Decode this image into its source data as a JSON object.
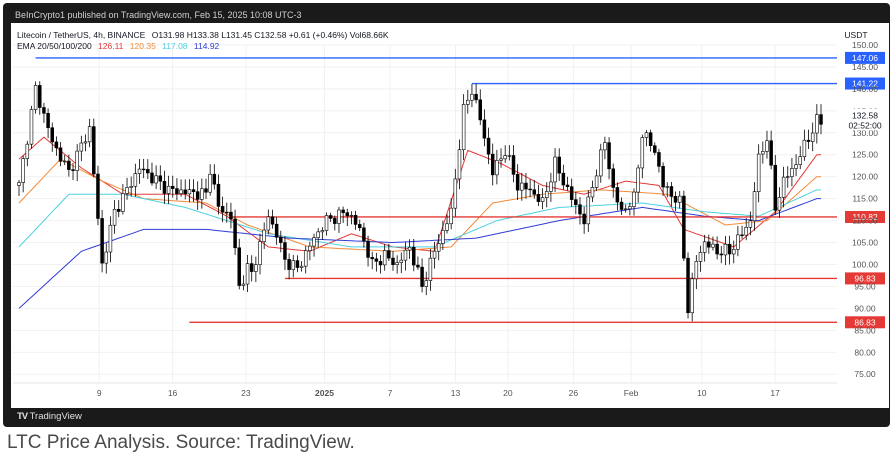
{
  "header_text": "BeInCrypto1 published on TradingView.com, Feb 15, 2025 10:08 UTC-3",
  "footer_logo": "TradingView",
  "caption": "LTC Price Analysis. Source: TradingView.",
  "legend": {
    "line1_prefix": "Litecoin / TetherUS, 4h, BINANCE",
    "ohlc": "O131.98  H133.38  L131.45  C132.58  +0.61 (+0.46%)  Vol68.66K",
    "ema_label": "EMA 20/50/100/200",
    "ema_values": [
      {
        "value": "126.11",
        "color": "#e53935"
      },
      {
        "value": "120.35",
        "color": "#f28b39"
      },
      {
        "value": "117.08",
        "color": "#4dd0e1"
      },
      {
        "value": "114.92",
        "color": "#2f3bd6"
      }
    ]
  },
  "colors": {
    "up_candle": "#ffffff",
    "down_candle": "#000000",
    "support_line": "#e53935",
    "resistance_line": "#2962ff",
    "ema20": "#e53935",
    "ema50": "#f28b39",
    "ema100": "#4dd0e1",
    "ema200": "#2f3bd6"
  },
  "chart_data": {
    "type": "candlestick",
    "symbol": "Litecoin / TetherUS",
    "timeframe": "4h",
    "exchange": "BINANCE",
    "currency": "USDT",
    "y_range": [
      73,
      150
    ],
    "y_ticks": [
      75,
      80,
      85,
      90,
      95,
      100,
      105,
      110,
      115,
      120,
      125,
      130,
      135,
      140,
      145,
      150
    ],
    "x_ticks": [
      "9",
      "16",
      "23",
      "2025",
      "7",
      "13",
      "20",
      "26",
      "Feb",
      "10",
      "17"
    ],
    "last_price": "132.58",
    "countdown": "02:52:00",
    "horizontal_levels": [
      {
        "label": "147.06",
        "value": 147.06,
        "kind": "resistance"
      },
      {
        "label": "141.22",
        "value": 141.22,
        "kind": "resistance"
      },
      {
        "label": "110.82",
        "value": 110.82,
        "kind": "support"
      },
      {
        "label": "96.83",
        "value": 96.83,
        "kind": "support"
      },
      {
        "label": "86.83",
        "value": 86.83,
        "kind": "support"
      }
    ],
    "price_keypoints": [
      [
        0,
        118
      ],
      [
        4,
        140
      ],
      [
        8,
        128
      ],
      [
        12,
        121
      ],
      [
        17,
        131
      ],
      [
        20,
        100
      ],
      [
        23,
        112
      ],
      [
        29,
        122
      ],
      [
        36,
        117
      ],
      [
        45,
        116
      ],
      [
        46,
        122
      ],
      [
        48,
        113
      ],
      [
        51,
        111
      ],
      [
        53,
        95
      ],
      [
        55,
        99
      ],
      [
        56,
        98
      ],
      [
        60,
        111
      ],
      [
        62,
        107
      ],
      [
        64,
        101
      ],
      [
        67,
        99
      ],
      [
        71,
        106
      ],
      [
        74,
        110
      ],
      [
        79,
        112
      ],
      [
        82,
        108
      ],
      [
        85,
        100
      ],
      [
        88,
        102
      ],
      [
        91,
        100
      ],
      [
        94,
        104
      ],
      [
        97,
        95
      ],
      [
        100,
        103
      ],
      [
        104,
        112
      ],
      [
        107,
        135
      ],
      [
        109,
        140
      ],
      [
        111,
        133
      ],
      [
        114,
        121
      ],
      [
        117,
        126
      ],
      [
        120,
        118
      ],
      [
        123,
        117
      ],
      [
        126,
        114
      ],
      [
        129,
        123
      ],
      [
        133,
        115
      ],
      [
        136,
        110
      ],
      [
        138,
        118
      ],
      [
        141,
        128
      ],
      [
        143,
        117
      ],
      [
        145,
        112
      ],
      [
        148,
        115
      ],
      [
        150,
        130
      ],
      [
        153,
        126
      ],
      [
        155,
        118
      ],
      [
        159,
        114
      ],
      [
        161,
        90
      ],
      [
        163,
        101
      ],
      [
        165,
        105
      ],
      [
        168,
        103
      ],
      [
        171,
        103
      ],
      [
        174,
        107
      ],
      [
        176,
        110
      ],
      [
        178,
        124
      ],
      [
        180,
        129
      ],
      [
        182,
        113
      ],
      [
        184,
        119
      ],
      [
        187,
        123
      ],
      [
        189,
        127
      ],
      [
        192,
        132.58
      ]
    ],
    "ema_keypoints": {
      "EMA 20": [
        [
          0,
          124
        ],
        [
          6,
          129
        ],
        [
          15,
          122
        ],
        [
          25,
          116
        ],
        [
          40,
          116
        ],
        [
          50,
          111
        ],
        [
          60,
          104
        ],
        [
          70,
          103
        ],
        [
          80,
          107
        ],
        [
          90,
          104
        ],
        [
          100,
          103
        ],
        [
          108,
          126
        ],
        [
          116,
          123
        ],
        [
          126,
          118
        ],
        [
          136,
          116
        ],
        [
          146,
          119
        ],
        [
          154,
          118
        ],
        [
          160,
          108
        ],
        [
          172,
          104
        ],
        [
          182,
          112
        ],
        [
          192,
          125
        ]
      ],
      "EMA 50": [
        [
          0,
          114
        ],
        [
          10,
          124
        ],
        [
          20,
          119
        ],
        [
          30,
          115
        ],
        [
          45,
          114
        ],
        [
          55,
          109
        ],
        [
          70,
          104
        ],
        [
          90,
          103
        ],
        [
          104,
          104
        ],
        [
          114,
          114
        ],
        [
          126,
          116
        ],
        [
          140,
          117
        ],
        [
          156,
          116
        ],
        [
          170,
          109
        ],
        [
          180,
          110
        ],
        [
          192,
          120
        ]
      ],
      "EMA 100": [
        [
          0,
          104
        ],
        [
          12,
          116
        ],
        [
          25,
          116
        ],
        [
          40,
          113
        ],
        [
          60,
          107
        ],
        [
          80,
          104
        ],
        [
          100,
          104
        ],
        [
          115,
          110
        ],
        [
          130,
          113
        ],
        [
          150,
          114
        ],
        [
          165,
          112
        ],
        [
          178,
          111
        ],
        [
          192,
          117
        ]
      ],
      "EMA 200": [
        [
          0,
          90
        ],
        [
          15,
          103
        ],
        [
          30,
          108
        ],
        [
          45,
          108
        ],
        [
          65,
          106
        ],
        [
          90,
          105
        ],
        [
          110,
          106
        ],
        [
          130,
          110
        ],
        [
          150,
          113
        ],
        [
          165,
          111
        ],
        [
          178,
          110
        ],
        [
          192,
          115
        ]
      ]
    }
  }
}
